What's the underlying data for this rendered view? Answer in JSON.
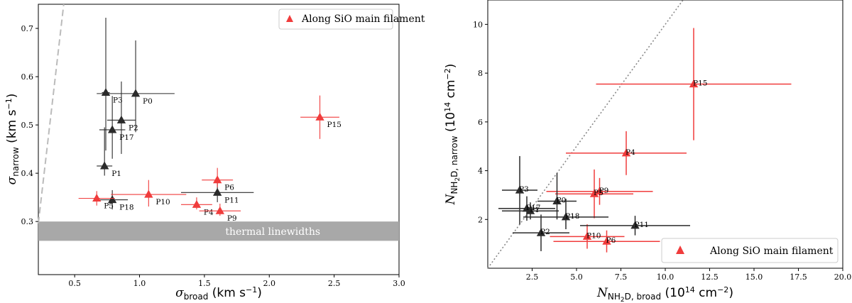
{
  "chart_data": [
    {
      "type": "scatter",
      "xlabel": "σ_broad (km s⁻¹)",
      "ylabel": "σ_narrow (km s⁻¹)",
      "xlim": [
        0.22,
        3.0
      ],
      "ylim": [
        0.19,
        0.75
      ],
      "xticks": [
        "0.5",
        "1.0",
        "1.5",
        "2.0",
        "2.5",
        "3.0"
      ],
      "yticks": [
        "0.3",
        "0.4",
        "0.5",
        "0.6",
        "0.7"
      ],
      "legend": "Along SiO main filament",
      "legend_position": "top-right",
      "reference_line": {
        "style": "dashed",
        "color": "#bbbbbb",
        "points": [
          [
            0.2,
            0.25
          ],
          [
            0.42,
            0.76
          ]
        ]
      },
      "band": {
        "y": [
          0.26,
          0.3
        ],
        "label": "thermal linewidths",
        "color": "#a8a8a8"
      },
      "points": [
        {
          "label": "P0",
          "x": 0.97,
          "y": 0.565,
          "xerr": 0.3,
          "yerr_lo": 0.08,
          "yerr_hi": 0.11,
          "group": "other"
        },
        {
          "label": "P3",
          "x": 0.74,
          "y": 0.567,
          "xerr": 0.03,
          "yerr_lo": 0.12,
          "yerr_hi": 0.155,
          "group": "other"
        },
        {
          "label": "P2",
          "x": 0.86,
          "y": 0.51,
          "xerr": 0.11,
          "yerr_lo": 0.07,
          "yerr_hi": 0.08,
          "group": "other"
        },
        {
          "label": "P17",
          "x": 0.79,
          "y": 0.49,
          "xerr": 0.1,
          "yerr_lo": 0.06,
          "yerr_hi": 0.07,
          "group": "other"
        },
        {
          "label": "P1",
          "x": 0.73,
          "y": 0.415,
          "xerr": 0.06,
          "yerr_lo": 0.02,
          "yerr_hi": 0.08,
          "group": "other"
        },
        {
          "label": "P18",
          "x": 0.79,
          "y": 0.345,
          "xerr": 0.12,
          "yerr_lo": 0.02,
          "yerr_hi": 0.02,
          "group": "other"
        },
        {
          "label": "P11",
          "x": 1.6,
          "y": 0.36,
          "xerr": 0.28,
          "yerr_lo": 0.02,
          "yerr_hi": 0.02,
          "group": "other"
        },
        {
          "label": "P5",
          "x": 0.67,
          "y": 0.348,
          "xerr": 0.14,
          "yerr_lo": 0.015,
          "yerr_hi": 0.015,
          "group": "filament"
        },
        {
          "label": "P10",
          "x": 1.07,
          "y": 0.356,
          "xerr": 0.29,
          "yerr_lo": 0.025,
          "yerr_hi": 0.03,
          "group": "filament"
        },
        {
          "label": "P6",
          "x": 1.6,
          "y": 0.386,
          "xerr": 0.12,
          "yerr_lo": 0.015,
          "yerr_hi": 0.025,
          "group": "filament"
        },
        {
          "label": "P4",
          "x": 1.44,
          "y": 0.335,
          "xerr": 0.12,
          "yerr_lo": 0.01,
          "yerr_hi": 0.015,
          "group": "filament"
        },
        {
          "label": "P9",
          "x": 1.62,
          "y": 0.322,
          "xerr": 0.16,
          "yerr_lo": 0.01,
          "yerr_hi": 0.015,
          "group": "filament"
        },
        {
          "label": "P15",
          "x": 2.39,
          "y": 0.516,
          "xerr": 0.15,
          "yerr_lo": 0.045,
          "yerr_hi": 0.045,
          "group": "filament"
        }
      ]
    },
    {
      "type": "scatter",
      "xlabel": "N_NH₂D, broad (10¹⁴ cm⁻²)",
      "ylabel": "N_NH₂D, narrow (10¹⁴ cm⁻²)",
      "xlim": [
        0.0,
        20.0
      ],
      "ylim": [
        0.0,
        11.0
      ],
      "xticks": [
        "2.5",
        "5.0",
        "7.5",
        "10.0",
        "12.5",
        "15.0",
        "17.5",
        "20.0"
      ],
      "yticks": [
        "2",
        "4",
        "6",
        "8",
        "10"
      ],
      "legend": "Along SiO main filament",
      "legend_position": "bottom-right",
      "reference_line": {
        "style": "dotted",
        "color": "#888888",
        "points": [
          [
            0,
            0
          ],
          [
            11.2,
            11.2
          ]
        ]
      },
      "points": [
        {
          "label": "P15",
          "x": 11.6,
          "y": 7.55,
          "xerr": 5.5,
          "yerr_lo": 2.3,
          "yerr_hi": 2.3,
          "group": "filament"
        },
        {
          "label": "P4",
          "x": 7.8,
          "y": 4.72,
          "xerr": 3.4,
          "yerr_lo": 0.9,
          "yerr_hi": 0.9,
          "group": "filament"
        },
        {
          "label": "P9",
          "x": 6.3,
          "y": 3.15,
          "xerr": 3.0,
          "yerr_lo": 0.55,
          "yerr_hi": 0.55,
          "group": "filament"
        },
        {
          "label": "P5",
          "x": 6.0,
          "y": 3.05,
          "xerr": 2.2,
          "yerr_lo": 1.0,
          "yerr_hi": 1.0,
          "group": "filament"
        },
        {
          "label": "P10",
          "x": 5.6,
          "y": 1.3,
          "xerr": 2.1,
          "yerr_lo": 0.5,
          "yerr_hi": 0.5,
          "group": "filament"
        },
        {
          "label": "P6",
          "x": 6.7,
          "y": 1.1,
          "xerr": 3.0,
          "yerr_lo": 0.45,
          "yerr_hi": 0.45,
          "group": "filament"
        },
        {
          "label": "P3",
          "x": 1.8,
          "y": 3.2,
          "xerr": 1.0,
          "yerr_lo": 1.4,
          "yerr_hi": 1.4,
          "group": "other"
        },
        {
          "label": "P1",
          "x": 2.4,
          "y": 2.35,
          "xerr": 1.6,
          "yerr_lo": 0.35,
          "yerr_hi": 0.35,
          "group": "other"
        },
        {
          "label": "P17",
          "x": 2.2,
          "y": 2.45,
          "xerr": 1.6,
          "yerr_lo": 0.5,
          "yerr_hi": 0.5,
          "group": "other"
        },
        {
          "label": "P0",
          "x": 3.9,
          "y": 2.75,
          "xerr": 1.1,
          "yerr_lo": 0.75,
          "yerr_hi": 1.15,
          "group": "other"
        },
        {
          "label": "P18",
          "x": 4.4,
          "y": 2.1,
          "xerr": 2.4,
          "yerr_lo": 0.5,
          "yerr_hi": 0.75,
          "group": "other"
        },
        {
          "label": "P11",
          "x": 8.3,
          "y": 1.75,
          "xerr": 3.1,
          "yerr_lo": 0.4,
          "yerr_hi": 0.4,
          "group": "other"
        },
        {
          "label": "P2",
          "x": 3.0,
          "y": 1.45,
          "xerr": 1.6,
          "yerr_lo": 0.75,
          "yerr_hi": 0.75,
          "group": "other"
        }
      ]
    }
  ],
  "colors": {
    "filament": "#f03c3c",
    "other": "#2b2b2b",
    "band": "#a8a8a8",
    "dashed_line": "#bbbbbb",
    "dotted_line": "#888888"
  }
}
